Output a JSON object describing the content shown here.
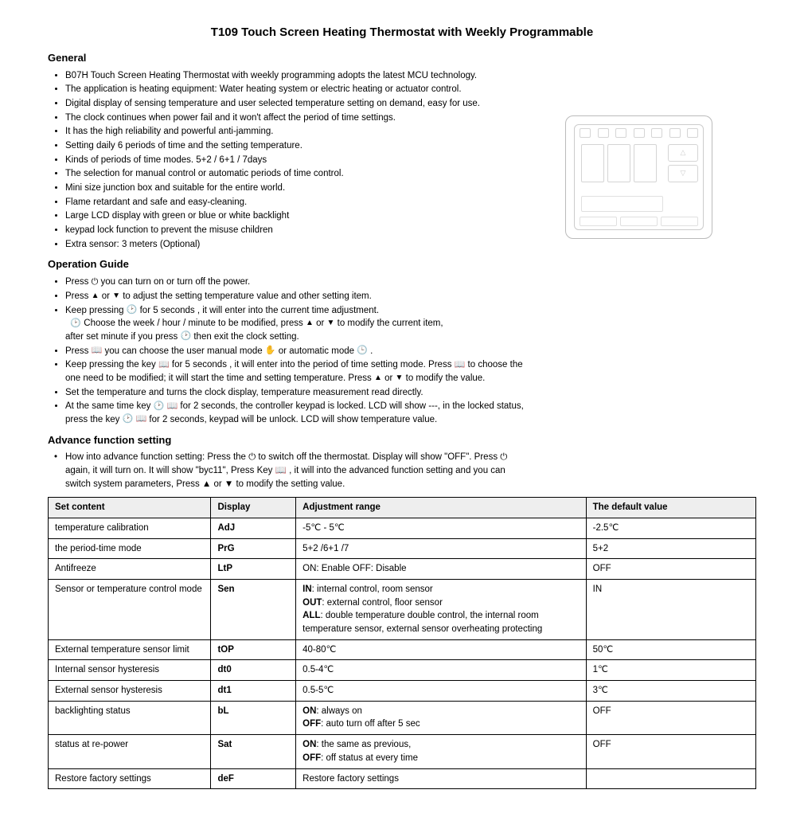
{
  "title": "T109 Touch Screen Heating Thermostat with Weekly Programmable",
  "sections": {
    "general": {
      "heading": "General",
      "items": [
        "B07H Touch Screen Heating Thermostat with weekly programming adopts the latest MCU technology.",
        "The application is heating equipment: Water heating system or electric heating or actuator control.",
        "Digital display of sensing temperature and user selected temperature setting on demand, easy for use.",
        "The clock continues when power fail and it won't affect the period of time settings.",
        "It has the high reliability and powerful anti-jamming.",
        "Setting daily 6 periods of time and the setting temperature.",
        "Kinds of periods of time modes. 5+2 / 6+1 / 7days",
        "The selection for manual control or automatic periods of time control.",
        "Mini size junction box and suitable for the entire world.",
        "Flame retardant and safe and easy-cleaning.",
        "Large LCD display with green or blue or white backlight",
        "keypad lock function to prevent the misuse children",
        "Extra sensor: 3 meters (Optional)"
      ]
    },
    "operation": {
      "heading": "Operation Guide",
      "line1a": "Press ",
      "line1b": " you can turn on or turn off the power.",
      "line2a": "Press ",
      "line2b": " or ",
      "line2c": " to adjust the setting temperature value and other setting item.",
      "line3a": "Keep pressing ",
      "line3b": " for 5 seconds , it will enter into the current time adjustment.",
      "line3c": " Choose the week / hour / minute to be modified, press ",
      "line3d": " or ",
      "line3e": " to modify the current item,",
      "line3f": "after set minute if you press ",
      "line3g": " then exit the clock setting.",
      "line4a": "Press ",
      "line4b": " you can choose the user manual mode ",
      "line4c": " or automatic mode ",
      "line4d": " .",
      "line5a": "Keep pressing the key ",
      "line5b": " for 5 seconds , it will enter into the period of time setting mode. Press ",
      "line5c": " to choose the",
      "line5d": "one need to be modified; it will start the time and setting temperature. Press ",
      "line5e": " or ",
      "line5f": " to modify the value.",
      "line6": "Set the temperature and turns the clock display, temperature measurement read directly.",
      "line7a": "At the same time key ",
      "line7b": " for 2 seconds, the controller keypad is locked. LCD will show ---, in the locked status,",
      "line7c": "press the key ",
      "line7d": " for 2 seconds, keypad will be unlock. LCD will show temperature value."
    },
    "advance": {
      "heading": "Advance function setting",
      "p1": "How into advance function setting:  Press the ⏻ to switch off the thermostat.  Display will show \"OFF\". Press ⏻",
      "p2": "again, it will turn on. It will show \"byc11\", Press Key 📖 , it will into the advanced function setting and you can",
      "p3": "switch system parameters, Press ▲ or ▼ to modify the setting value."
    }
  },
  "table": {
    "headers": [
      "Set content",
      "Display",
      "Adjustment range",
      "The default value"
    ],
    "rows": [
      {
        "set": "temperature calibration",
        "disp": "AdJ",
        "adj": "-5℃ - 5℃",
        "def": "-2.5℃"
      },
      {
        "set": "the period-time mode",
        "disp": "PrG",
        "adj": "5+2  /6+1  /7",
        "def": "5+2"
      },
      {
        "set": "Antifreeze",
        "disp": "LtP",
        "adj": "ON: Enable OFF: Disable",
        "def": "OFF"
      },
      {
        "set": "Sensor or temperature control mode",
        "disp": "Sen",
        "adj": "<span class='b'>IN</span>: internal control, room sensor<br><span class='b'>OUT</span>: external control, floor sensor<br><span class='b'>ALL</span>: double temperature double control, the internal room temperature sensor, external sensor overheating protecting",
        "def": "IN"
      },
      {
        "set": "External temperature sensor limit",
        "disp": "tOP",
        "adj": "40-80℃",
        "def": "50℃"
      },
      {
        "set": "Internal sensor hysteresis",
        "disp": "dt0",
        "adj": "0.5-4℃",
        "def": "1℃"
      },
      {
        "set": "External sensor hysteresis",
        "disp": "dt1",
        "adj": "0.5-5℃",
        "def": "3℃"
      },
      {
        "set": "backlighting status",
        "disp": "bL",
        "adj": "<span class='b'>ON</span>: always on<br><span class='b'>OFF</span>: auto turn off after 5 sec",
        "def": "OFF"
      },
      {
        "set": "status at re-power",
        "disp": "Sat",
        "adj": "<span class='b'>ON</span>: the same as previous,<br><span class='b'>OFF</span>: off status at every time",
        "def": "OFF"
      },
      {
        "set": "Restore factory settings",
        "disp": "deF",
        "adj": "Restore factory settings",
        "def": ""
      }
    ]
  },
  "colors": {
    "text": "#000000",
    "bg": "#ffffff",
    "th_bg": "#eeeeee",
    "faint": "#cccccc"
  }
}
